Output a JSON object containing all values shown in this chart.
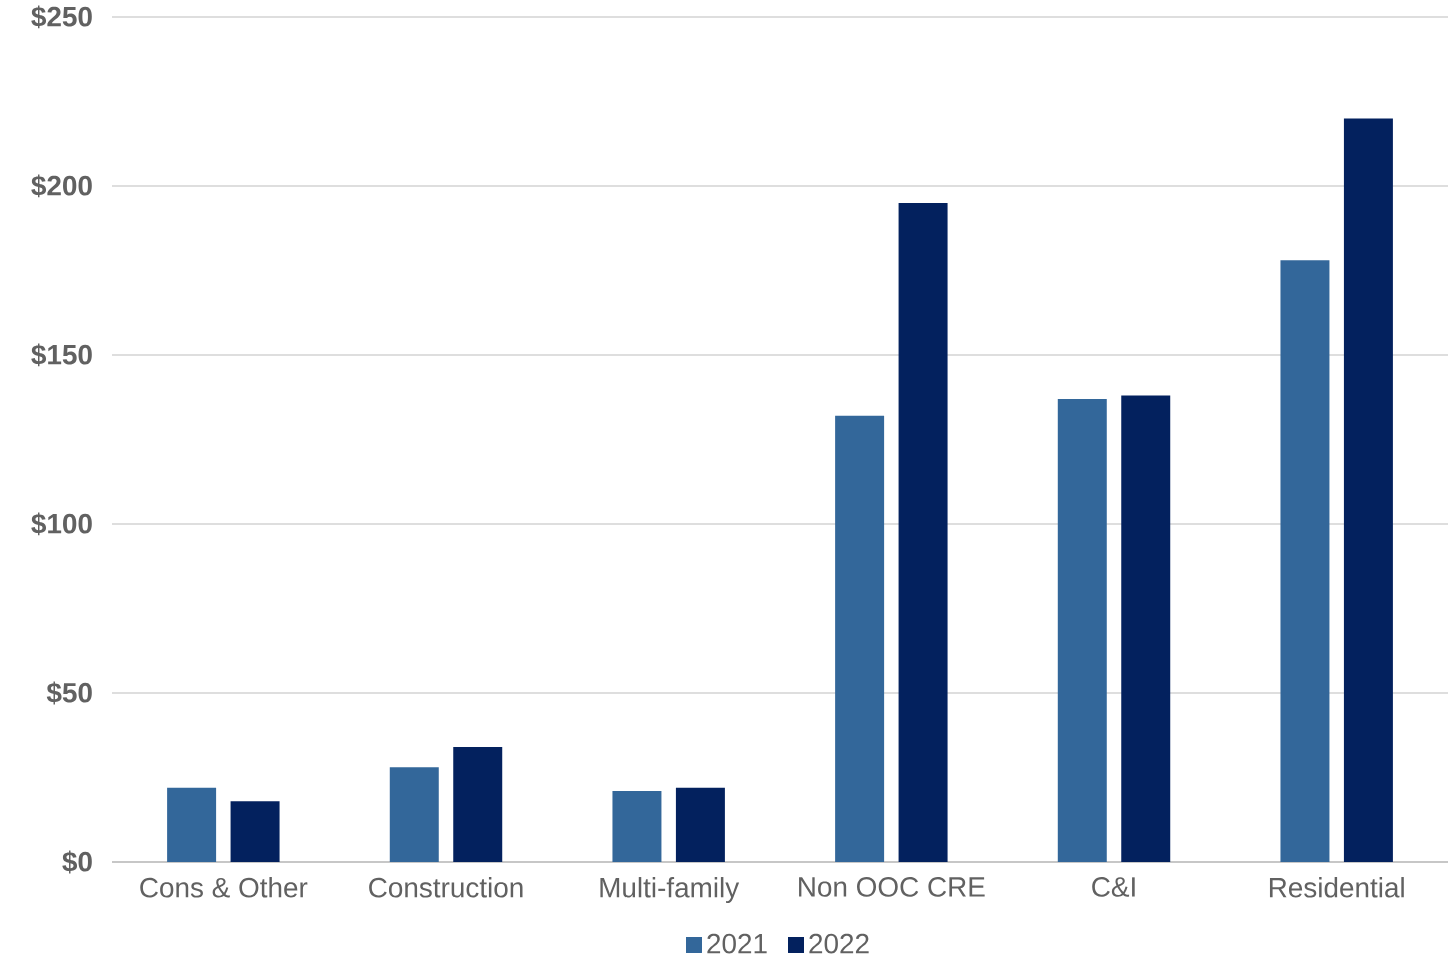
{
  "chart_data": {
    "type": "bar",
    "categories": [
      "Cons & Other",
      "Construction",
      "Multi-family",
      "Non OOC CRE",
      "C&I",
      "Residential"
    ],
    "series": [
      {
        "name": "2021",
        "color": "#33679a",
        "values": [
          22,
          28,
          21,
          132,
          137,
          178
        ]
      },
      {
        "name": "2022",
        "color": "#03215e",
        "values": [
          18,
          34,
          22,
          195,
          138,
          220
        ]
      }
    ],
    "ylim": [
      0,
      250
    ],
    "yticks": [
      {
        "value": 0,
        "label": "$0"
      },
      {
        "value": 50,
        "label": "$50"
      },
      {
        "value": 100,
        "label": "$100"
      },
      {
        "value": 150,
        "label": "$150"
      },
      {
        "value": 200,
        "label": "$200"
      },
      {
        "value": 250,
        "label": "$250"
      }
    ],
    "grid": "y",
    "legend": "bottom"
  }
}
